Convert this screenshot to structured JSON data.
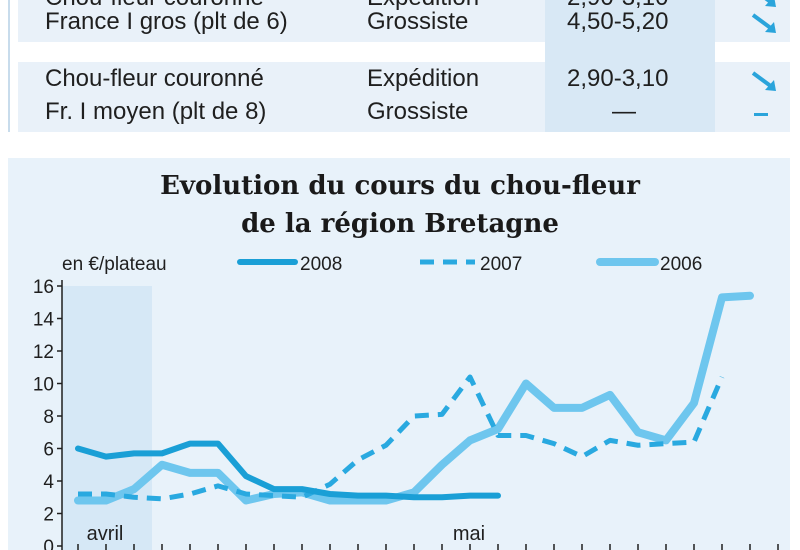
{
  "table": {
    "rows": [
      {
        "product": "Chou-fleur couronné",
        "stage": "Expédition",
        "price": "2,90-3,10",
        "trend": "down-arrow"
      },
      {
        "product": "France I gros (plt de 6)",
        "stage": "Grossiste",
        "price": "4,50-5,20",
        "trend": "down-arrow"
      },
      {
        "product": "Chou-fleur couronné",
        "stage": "Expédition",
        "price": "2,90-3,10",
        "trend": "down-arrow"
      },
      {
        "product": "Fr. I moyen (plt de 8)",
        "stage": "Grossiste",
        "price": "—",
        "trend": "stable-dash"
      }
    ]
  },
  "colors": {
    "s2008": "#1a9fd6",
    "s2007": "#29a9e0",
    "s2006": "#6ec6ee",
    "arrow": "#2aa4db",
    "panel": "#e8f2fa",
    "april_band": "#d6e8f6"
  },
  "chart_data": {
    "type": "line",
    "title": [
      "Evolution du cours du chou-fleur",
      "de la région Bretagne"
    ],
    "ylabel": "en €/plateau",
    "ylim": [
      0,
      16
    ],
    "yticks": [
      0,
      2,
      4,
      6,
      8,
      10,
      12,
      14,
      16
    ],
    "xlabels": [
      {
        "label": "avril",
        "x": 1
      },
      {
        "label": "mai",
        "x": 14
      }
    ],
    "grid": false,
    "legend": "top",
    "series": [
      {
        "name": "2008",
        "style": "solid",
        "x": [
          0,
          1,
          2,
          3,
          4,
          5,
          6,
          7,
          8,
          9,
          10,
          11,
          12,
          13,
          14,
          15
        ],
        "values": [
          6.0,
          5.5,
          5.7,
          5.7,
          6.3,
          6.3,
          4.3,
          3.5,
          3.5,
          3.2,
          3.1,
          3.1,
          3.0,
          3.0,
          3.1,
          3.1
        ]
      },
      {
        "name": "2007",
        "style": "dashed",
        "x": [
          0,
          1,
          2,
          3,
          4,
          5,
          6,
          7,
          8,
          9,
          10,
          11,
          12,
          13,
          14,
          15,
          16,
          17,
          18,
          19,
          20,
          21,
          22,
          23
        ],
        "values": [
          3.2,
          3.2,
          3.0,
          2.9,
          3.2,
          3.7,
          3.2,
          3.1,
          3.0,
          3.8,
          5.3,
          6.2,
          8.0,
          8.1,
          10.4,
          6.8,
          6.8,
          6.3,
          5.5,
          6.5,
          6.2,
          6.3,
          6.4,
          10.4
        ]
      },
      {
        "name": "2006",
        "style": "thick",
        "x": [
          0,
          1,
          2,
          3,
          4,
          5,
          6,
          7,
          8,
          9,
          10,
          11,
          12,
          13,
          14,
          15,
          16,
          17,
          18,
          19,
          20,
          21,
          22,
          23,
          24
        ],
        "values": [
          2.8,
          2.8,
          3.5,
          5.0,
          4.5,
          4.5,
          2.8,
          3.2,
          3.3,
          2.8,
          2.8,
          2.8,
          3.3,
          5.0,
          6.5,
          7.2,
          10.0,
          8.5,
          8.5,
          9.3,
          7.0,
          6.5,
          8.8,
          15.3,
          15.4
        ]
      }
    ]
  }
}
